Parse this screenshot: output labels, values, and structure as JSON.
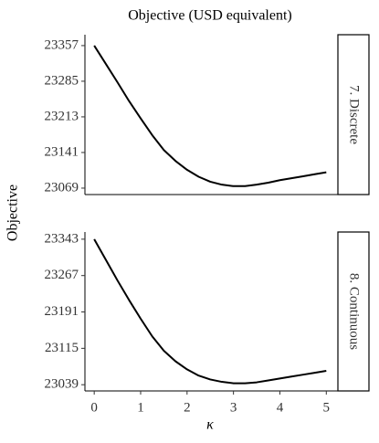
{
  "figure": {
    "title": "Objective (USD equivalent)",
    "y_label": "Objective",
    "x_label": "κ"
  },
  "chart_data": [
    {
      "type": "line",
      "facet": "7. Discrete",
      "color": "#000000",
      "x": [
        0,
        0.25,
        0.5,
        0.75,
        1,
        1.25,
        1.5,
        1.75,
        2,
        2.25,
        2.5,
        2.75,
        3,
        3.25,
        3.5,
        3.75,
        4,
        4.25,
        4.5,
        4.75,
        5
      ],
      "values": [
        23357,
        23320,
        23283,
        23245,
        23210,
        23176,
        23146,
        23124,
        23106,
        23092,
        23082,
        23076,
        23073,
        23073,
        23076,
        23080,
        23085,
        23089,
        23093,
        23097,
        23101
      ],
      "xlim": [
        -0.2,
        5.25
      ],
      "ylim": [
        23056,
        23379
      ],
      "yticks": [
        23069,
        23141,
        23213,
        23285,
        23357
      ]
    },
    {
      "type": "line",
      "facet": "8. Continuous",
      "color": "#000000",
      "x": [
        0,
        0.25,
        0.5,
        0.75,
        1,
        1.25,
        1.5,
        1.75,
        2,
        2.25,
        2.5,
        2.75,
        3,
        3.25,
        3.5,
        3.75,
        4,
        4.25,
        4.5,
        4.75,
        5
      ],
      "values": [
        23343,
        23300,
        23257,
        23216,
        23177,
        23140,
        23110,
        23088,
        23071,
        23058,
        23050,
        23045,
        23042,
        23042,
        23044,
        23048,
        23052,
        23056,
        23060,
        23064,
        23068
      ],
      "xlim": [
        -0.2,
        5.25
      ],
      "xticks": [
        0,
        1,
        2,
        3,
        4,
        5
      ],
      "ylim": [
        23026,
        23358
      ],
      "yticks": [
        23039,
        23115,
        23191,
        23267,
        23343
      ]
    }
  ]
}
